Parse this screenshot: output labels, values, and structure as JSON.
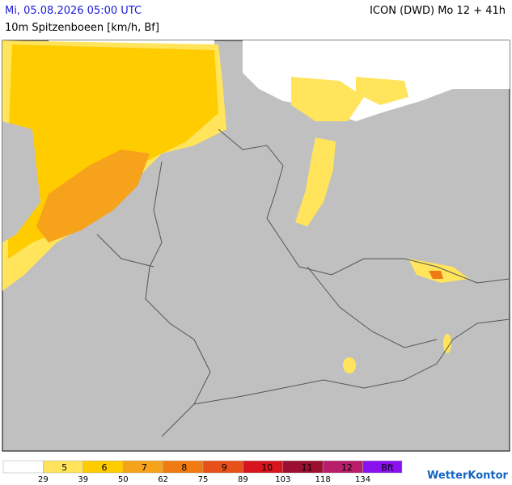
{
  "header": {
    "valid_time": "Mi, 05.08.2026 05:00 UTC",
    "model": "ICON (DWD) Mo 12 + 41h",
    "parameter": "10m Spitzenboeen [km/h, Bf]"
  },
  "legend": {
    "boxes": [
      {
        "color": "#ffffff"
      },
      {
        "label": "5",
        "color": "#ffe45c"
      },
      {
        "label": "6",
        "color": "#ffcc00"
      },
      {
        "label": "7",
        "color": "#f7a21b"
      },
      {
        "label": "8",
        "color": "#f07b12"
      },
      {
        "label": "9",
        "color": "#e8501a"
      },
      {
        "label": "10",
        "color": "#d8141f"
      },
      {
        "label": "11",
        "color": "#9b1030"
      },
      {
        "label": "12",
        "color": "#b81e6a"
      },
      {
        "label": "Bft",
        "color": "#8a12f0"
      }
    ],
    "thresholds": [
      29,
      39,
      50,
      62,
      75,
      89,
      103,
      118,
      134
    ]
  },
  "brand": "WetterKontor"
}
